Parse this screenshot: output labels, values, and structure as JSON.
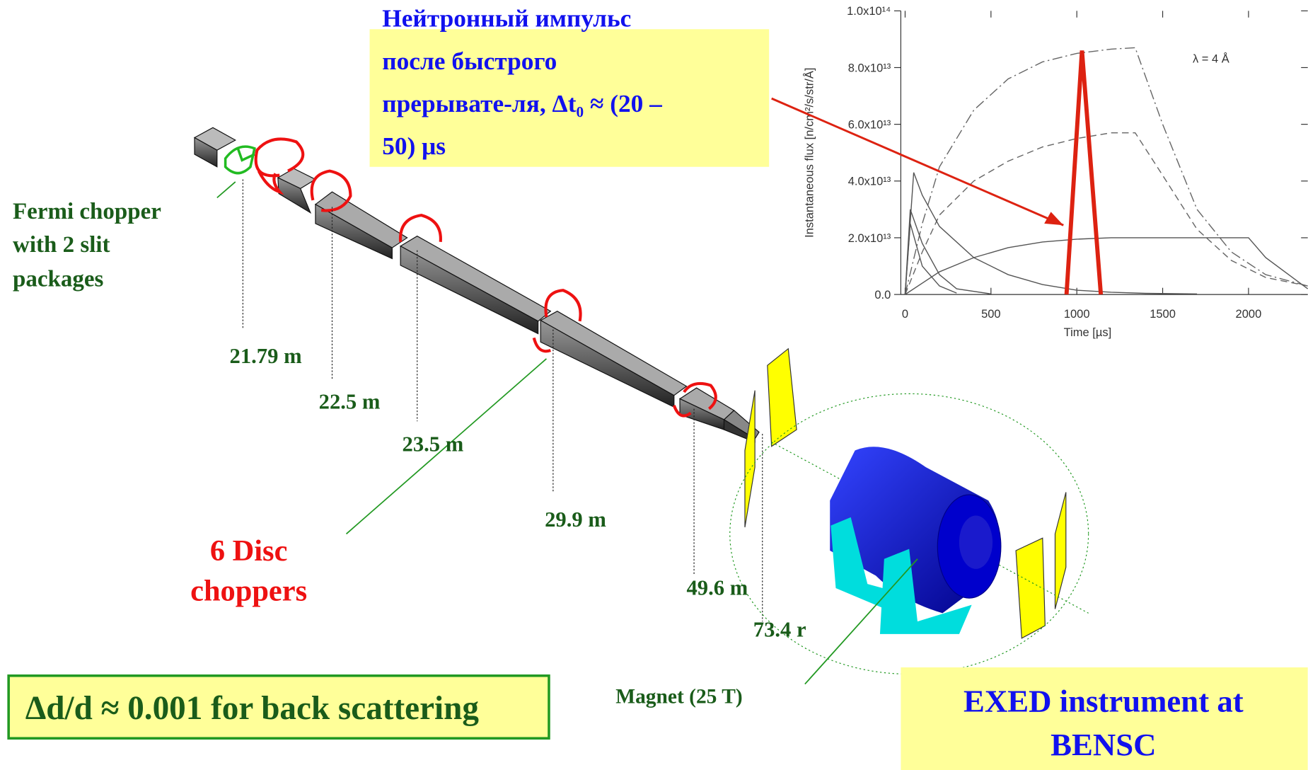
{
  "pulse_note": {
    "lines": [
      "Нейтронный импульс",
      "после быстрого",
      "прерывате-ля,  Δt₀ ≈ (20 –",
      "50) μs"
    ]
  },
  "fermi_label": {
    "lines": [
      "Fermi chopper",
      "with 2 slit",
      "packages"
    ]
  },
  "distances": [
    "21.79 m",
    "22.5 m",
    "23.5 m",
    "29.9 m",
    "49.6 m",
    "73.4 r"
  ],
  "disc_label": {
    "lines": [
      "6 Disc",
      "choppers"
    ]
  },
  "magnet_label": "Magnet (25 T)",
  "resolution_note": "Δd/d ≈ 0.001 for back scattering",
  "instrument_label": {
    "lines": [
      "EXED instrument at",
      "BENSC"
    ]
  },
  "chart_data": {
    "type": "line",
    "x_label": "Time [µs]",
    "y_label": "Instantaneous flux [n/cm²/s/str/Å]",
    "annotation": "λ = 4 Å",
    "xlim": [
      -25,
      2345
    ],
    "ylim": [
      0,
      100000000000000
    ],
    "xticks": [
      0,
      500,
      1000,
      1500,
      2000
    ],
    "yticks": [
      {
        "value": 0,
        "label": "0.0"
      },
      {
        "value": 20000000000000,
        "label": "2.0x10¹³"
      },
      {
        "value": 40000000000000,
        "label": "4.0x10¹³"
      },
      {
        "value": 60000000000000,
        "label": "6.0x10¹³"
      },
      {
        "value": 80000000000000,
        "label": "8.0x10¹³"
      },
      {
        "value": 100000000000000,
        "label": "1.0x10¹⁴"
      }
    ],
    "series": [
      {
        "color": "#666666",
        "dash": "12 4 2 4",
        "x": [
          0,
          100,
          200,
          400,
          600,
          800,
          1000,
          1200,
          1340,
          1500,
          1700,
          1900,
          2100,
          2345
        ],
        "values": [
          0,
          25000000000000,
          45000000000000,
          65000000000000,
          76000000000000,
          82000000000000,
          85000000000000,
          86500000000000,
          87000000000000,
          60000000000000,
          30000000000000,
          15000000000000,
          7000000000000,
          3000000000000
        ]
      },
      {
        "color": "#666666",
        "dash": "8 5",
        "x": [
          0,
          100,
          200,
          400,
          600,
          800,
          1000,
          1200,
          1340,
          1500,
          1700,
          1900,
          2100,
          2345
        ],
        "values": [
          0,
          15000000000000,
          28000000000000,
          40000000000000,
          47000000000000,
          52000000000000,
          55000000000000,
          57000000000000,
          57000000000000,
          42000000000000,
          23000000000000,
          12000000000000,
          6000000000000,
          3000000000000
        ]
      },
      {
        "color": "#555555",
        "dash": "none",
        "x": [
          0,
          100,
          200,
          400,
          600,
          800,
          1000,
          1200,
          1400,
          1700,
          2000,
          2100,
          2345
        ],
        "values": [
          0,
          4000000000000,
          8000000000000,
          13000000000000,
          16500000000000,
          18500000000000,
          19500000000000,
          20000000000000,
          20000000000000,
          20000000000000,
          20000000000000,
          13000000000000,
          2000000000000
        ]
      },
      {
        "color": "#555555",
        "dash": "none",
        "x": [
          0,
          50,
          100,
          200,
          400,
          600,
          800,
          1000,
          1200,
          1400,
          1700
        ],
        "values": [
          0,
          43000000000000,
          35000000000000,
          24000000000000,
          13000000000000,
          7000000000000,
          3500000000000,
          1500000000000,
          800000000000,
          400000000000,
          200000000000
        ]
      },
      {
        "color": "#555555",
        "dash": "none",
        "x": [
          0,
          30,
          100,
          200,
          300,
          500
        ],
        "values": [
          0,
          30000000000000,
          18000000000000,
          7000000000000,
          2000000000000,
          200000000000
        ]
      },
      {
        "color": "#555555",
        "dash": "none",
        "x": [
          0,
          30,
          100,
          200,
          300
        ],
        "values": [
          0,
          25000000000000,
          10000000000000,
          3000000000000,
          500000000000
        ]
      },
      {
        "color": "#dd2211",
        "dash": "none",
        "width": 5,
        "x": [
          940,
          1030,
          1140
        ],
        "values": [
          0,
          86000000000000,
          0
        ]
      }
    ]
  }
}
